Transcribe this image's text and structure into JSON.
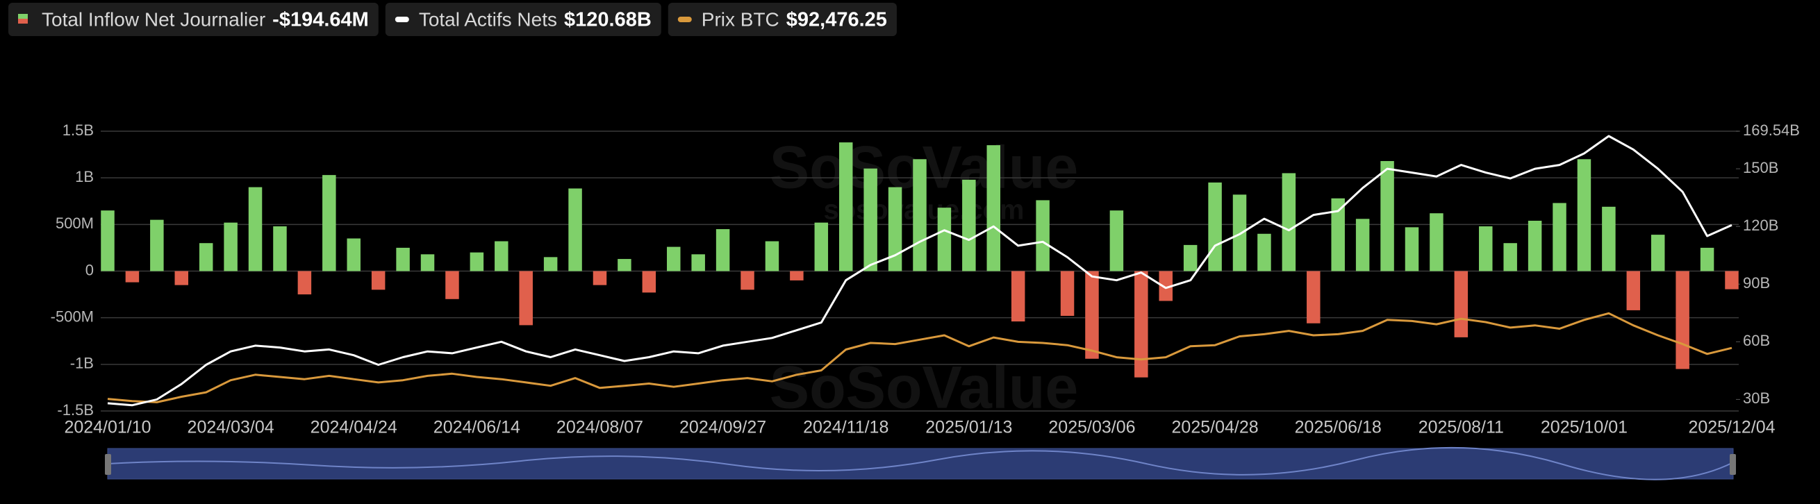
{
  "chart_data": {
    "type": "bar-line",
    "watermark": "SoSoValue",
    "watermark_url": "sosovalue.com",
    "categories": [
      "2024/01/10",
      null,
      null,
      null,
      null,
      "2024/03/04",
      null,
      null,
      null,
      null,
      "2024/04/24",
      null,
      null,
      null,
      null,
      "2024/06/14",
      null,
      null,
      null,
      null,
      "2024/08/07",
      null,
      null,
      null,
      null,
      "2024/09/27",
      null,
      null,
      null,
      null,
      "2024/11/18",
      null,
      null,
      null,
      null,
      "2025/01/13",
      null,
      null,
      null,
      null,
      "2025/03/06",
      null,
      null,
      null,
      null,
      "2025/04/28",
      null,
      null,
      null,
      null,
      "2025/06/18",
      null,
      null,
      null,
      null,
      "2025/08/11",
      null,
      null,
      null,
      null,
      "2025/10/01",
      null,
      null,
      null,
      null,
      null,
      "2025/12/04"
    ],
    "series": [
      {
        "name": "Total Inflow Net Journalier",
        "latest": "-$194.64M",
        "type": "bar",
        "axis": "y",
        "color": "#7fd06a",
        "negative_color": "#e0604c",
        "values": [
          650,
          -120,
          550,
          -150,
          300,
          520,
          900,
          480,
          -250,
          1030,
          350,
          -200,
          250,
          180,
          -300,
          200,
          320,
          -580,
          150,
          886,
          -150,
          130,
          -230,
          260,
          180,
          450,
          -200,
          320,
          -100,
          520,
          1380,
          1100,
          900,
          1200,
          680,
          980,
          1350,
          -540,
          760,
          -480,
          -940,
          650,
          -1140,
          -320,
          280,
          950,
          820,
          400,
          1050,
          -560,
          780,
          560,
          1180,
          470,
          620,
          -710,
          480,
          300,
          540,
          730,
          1200,
          690,
          -420,
          390,
          -1050,
          250,
          -194.64
        ]
      },
      {
        "name": "Total Actifs Nets",
        "latest": "$120.68B",
        "type": "line",
        "axis": "y2",
        "color": "#ffffff",
        "values": [
          28,
          27,
          30,
          38,
          48,
          55,
          58,
          57,
          55,
          56,
          53,
          48,
          52,
          55,
          54,
          57,
          60,
          55,
          52,
          56,
          53,
          50,
          52,
          55,
          54,
          58,
          60,
          62,
          66,
          70,
          92,
          100,
          105,
          112,
          118,
          113,
          120,
          110,
          112,
          104,
          94,
          92,
          96,
          88,
          92,
          110,
          116,
          124,
          118,
          126,
          128,
          140,
          150,
          148,
          146,
          152,
          148,
          145,
          150,
          152,
          158,
          167,
          160,
          150,
          138,
          115,
          120.68
        ]
      },
      {
        "name": "Prix BTC",
        "latest": "$92,476.25",
        "type": "line",
        "axis": "y3",
        "color": "#d9993c",
        "values": [
          46000,
          44000,
          43000,
          48000,
          52000,
          63000,
          68000,
          66000,
          64000,
          67000,
          64000,
          61000,
          63000,
          67000,
          69000,
          66000,
          64000,
          61000,
          58000,
          65000,
          56000,
          58000,
          60000,
          57000,
          60000,
          63000,
          65000,
          62000,
          68000,
          72000,
          91000,
          97000,
          96000,
          100000,
          104000,
          94000,
          102000,
          98000,
          97000,
          95000,
          90000,
          84000,
          82000,
          84000,
          94000,
          95000,
          103000,
          105000,
          108000,
          104000,
          105000,
          108000,
          118000,
          117000,
          114000,
          119000,
          116000,
          111000,
          113000,
          110000,
          118000,
          124000,
          113000,
          104000,
          96000,
          87000,
          92476.25
        ]
      }
    ],
    "ylim": [
      -1500,
      1500
    ],
    "yticks": [
      {
        "value": -1500,
        "label": "-1.5B"
      },
      {
        "value": -1000,
        "label": "-1B"
      },
      {
        "value": -500,
        "label": "-500M"
      },
      0,
      {
        "value": 500,
        "label": "500M"
      },
      {
        "value": 1000,
        "label": "1B"
      },
      {
        "value": 1500,
        "label": "1.5B"
      }
    ],
    "y2lim": [
      24,
      169.54
    ],
    "y2ticks": [
      {
        "value": 30,
        "label": "30B"
      },
      {
        "value": 60,
        "label": "60B"
      },
      {
        "value": 90,
        "label": "90B"
      },
      {
        "value": 120,
        "label": "120B"
      },
      {
        "value": 150,
        "label": "150B"
      },
      {
        "value": 169.54,
        "label": "169.54B"
      }
    ],
    "y3lim": [
      35000,
      290000
    ],
    "grid": true
  }
}
